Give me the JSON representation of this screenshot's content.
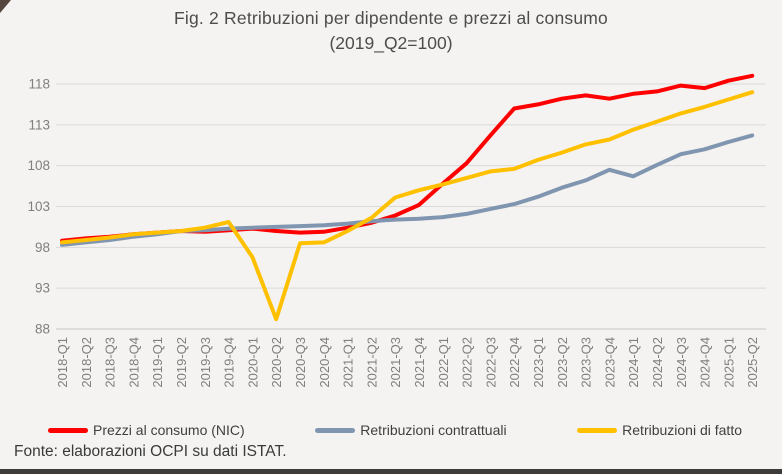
{
  "chart_data": {
    "type": "line",
    "title": "Fig. 2 Retribuzioni per dipendente e prezzi al consumo",
    "subtitle": "(2019_Q2=100)",
    "categories": [
      "2018-Q1",
      "2018-Q2",
      "2018-Q3",
      "2018-Q4",
      "2019-Q1",
      "2019-Q2",
      "2019-Q3",
      "2019-Q4",
      "2020-Q1",
      "2020-Q2",
      "2020-Q3",
      "2020-Q4",
      "2021-Q1",
      "2021-Q2",
      "2021-Q3",
      "2021-Q4",
      "2022-Q1",
      "2022-Q2",
      "2022-Q3",
      "2022-Q4",
      "2023-Q1",
      "2023-Q2",
      "2023-Q3",
      "2023-Q4",
      "2024-Q1",
      "2024-Q2",
      "2024-Q3",
      "2024-Q4",
      "2025-Q1",
      "2025-Q2"
    ],
    "series": [
      {
        "name": "Prezzi al consumo (NIC)",
        "color": "#FF0000",
        "values": [
          98.8,
          99.1,
          99.3,
          99.6,
          99.8,
          100.0,
          99.9,
          100.1,
          100.3,
          100.0,
          99.8,
          99.9,
          100.4,
          101.0,
          101.9,
          103.2,
          105.8,
          108.3,
          111.7,
          115.0,
          115.5,
          116.2,
          116.6,
          116.2,
          116.8,
          117.1,
          117.8,
          117.5,
          118.4,
          119.0
        ]
      },
      {
        "name": "Retribuzioni contrattuali",
        "color": "#8096B0",
        "values": [
          98.3,
          98.6,
          98.9,
          99.3,
          99.6,
          100.0,
          100.1,
          100.3,
          100.4,
          100.5,
          100.6,
          100.7,
          100.9,
          101.2,
          101.4,
          101.5,
          101.7,
          102.1,
          102.7,
          103.3,
          104.2,
          105.3,
          106.2,
          107.5,
          106.7,
          108.1,
          109.4,
          110.0,
          110.9,
          111.7
        ]
      },
      {
        "name": "Retribuzioni di fatto",
        "color": "#FFC000",
        "values": [
          98.6,
          98.9,
          99.2,
          99.6,
          99.8,
          100.0,
          100.4,
          101.1,
          96.8,
          89.2,
          98.5,
          98.6,
          100.0,
          101.6,
          104.1,
          105.0,
          105.7,
          106.5,
          107.3,
          107.6,
          108.7,
          109.6,
          110.6,
          111.2,
          112.4,
          113.4,
          114.4,
          115.2,
          116.1,
          117.0
        ]
      }
    ],
    "ylim": [
      88,
      118
    ],
    "yticks": [
      88,
      93,
      98,
      103,
      108,
      113,
      118
    ],
    "grid": "horizontal",
    "grid_color": "#d9d9d9",
    "axis_color": "#c6c6c6",
    "tick_label_color": "#7f7f7f",
    "legend_position": "bottom"
  },
  "footer": {
    "source": "Fonte: elaborazioni OCPI su dati ISTAT."
  }
}
